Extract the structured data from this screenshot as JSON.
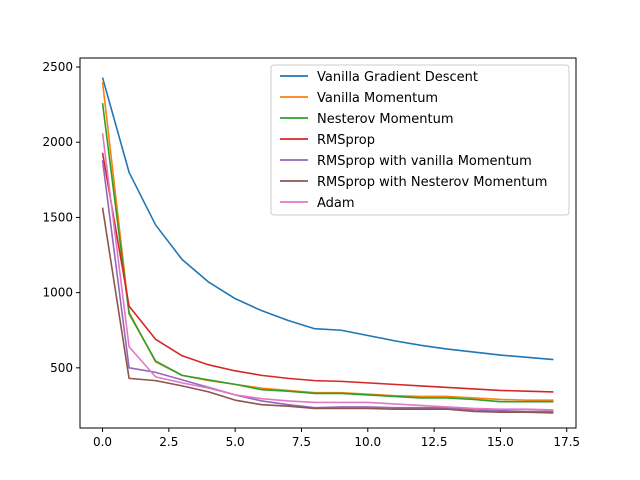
{
  "chart_data": {
    "type": "line",
    "title": "",
    "xlabel": "",
    "ylabel": "",
    "xlim": [
      -0.85,
      17.85
    ],
    "ylim": [
      100,
      2560
    ],
    "xticks": [
      0.0,
      2.5,
      5.0,
      7.5,
      10.0,
      12.5,
      15.0,
      17.5
    ],
    "xtick_labels": [
      "0.0",
      "2.5",
      "5.0",
      "7.5",
      "10.0",
      "12.5",
      "15.0",
      "17.5"
    ],
    "yticks": [
      500,
      1000,
      1500,
      2000,
      2500
    ],
    "ytick_labels": [
      "500",
      "1000",
      "1500",
      "2000",
      "2500"
    ],
    "grid": false,
    "legend_position": "top-right",
    "x": [
      0,
      1,
      2,
      3,
      4,
      5,
      6,
      7,
      8,
      9,
      10,
      11,
      12,
      13,
      14,
      15,
      16,
      17
    ],
    "series": [
      {
        "name": "Vanilla Gradient Descent",
        "color": "#1f77b4",
        "values": [
          2430,
          1800,
          1450,
          1220,
          1070,
          960,
          880,
          815,
          760,
          750,
          715,
          680,
          650,
          625,
          605,
          585,
          570,
          555
        ]
      },
      {
        "name": "Vanilla Momentum",
        "color": "#ff7f0e",
        "values": [
          2400,
          870,
          540,
          450,
          415,
          390,
          365,
          350,
          335,
          335,
          325,
          315,
          310,
          310,
          300,
          290,
          285,
          285
        ]
      },
      {
        "name": "Nesterov Momentum",
        "color": "#2ca02c",
        "values": [
          2260,
          860,
          545,
          450,
          420,
          390,
          355,
          345,
          330,
          330,
          320,
          310,
          300,
          300,
          290,
          275,
          275,
          275
        ]
      },
      {
        "name": "RMSprop",
        "color": "#d62728",
        "values": [
          1930,
          910,
          690,
          580,
          520,
          480,
          450,
          430,
          415,
          410,
          400,
          390,
          380,
          370,
          360,
          350,
          345,
          340
        ]
      },
      {
        "name": "RMSprop with vanilla Momentum",
        "color": "#9467bd",
        "values": [
          1880,
          500,
          470,
          420,
          370,
          320,
          280,
          255,
          235,
          240,
          240,
          235,
          235,
          235,
          220,
          215,
          210,
          210
        ]
      },
      {
        "name": "RMSprop with Nesterov Momentum",
        "color": "#8c564b",
        "values": [
          1565,
          430,
          415,
          380,
          340,
          285,
          255,
          245,
          230,
          230,
          230,
          225,
          225,
          225,
          210,
          205,
          205,
          200
        ]
      },
      {
        "name": "Adam",
        "color": "#e377c2",
        "values": [
          2060,
          640,
          440,
          400,
          365,
          320,
          295,
          280,
          270,
          270,
          270,
          260,
          250,
          240,
          230,
          225,
          225,
          220
        ]
      }
    ]
  }
}
